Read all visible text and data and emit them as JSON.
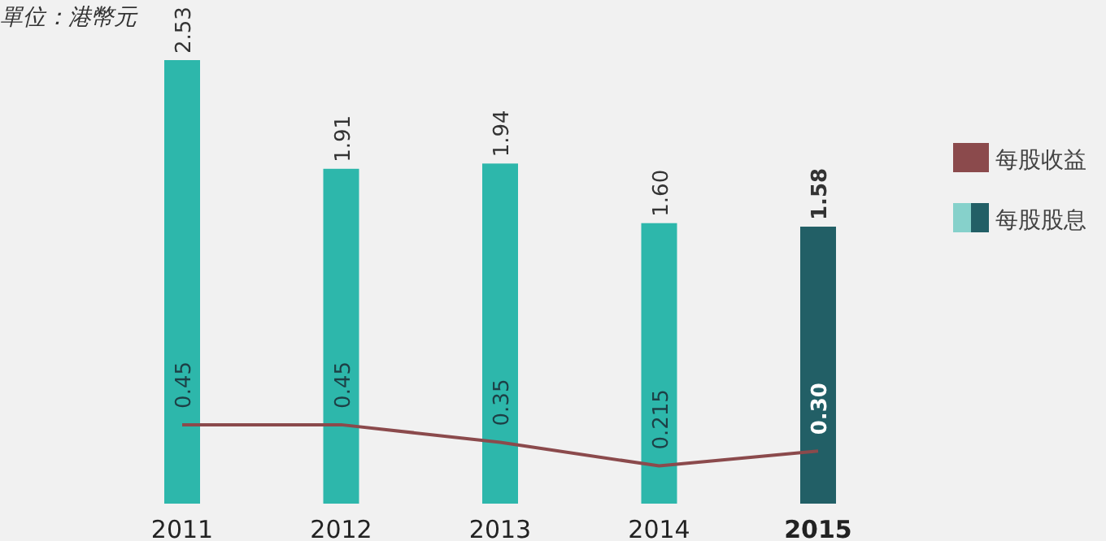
{
  "chart_data": {
    "type": "bar",
    "ylabel": "單位：港幣元",
    "categories": [
      "2011",
      "2012",
      "2013",
      "2014",
      "2015"
    ],
    "legend": "right",
    "series": [
      {
        "name": "每股收益",
        "type": "line",
        "color": "#8b4a4c",
        "values": [
          0.45,
          0.45,
          0.35,
          0.215,
          0.3
        ],
        "value_labels": [
          "0.45",
          "0.45",
          "0.35",
          "0.215",
          "0.30"
        ]
      },
      {
        "name": "每股股息",
        "color": "#2db7ab",
        "colors": [
          "#2db7ab",
          "#2db7ab",
          "#2db7ab",
          "#2db7ab",
          "#225f66"
        ],
        "values": [
          2.53,
          1.91,
          1.94,
          1.6,
          1.58
        ],
        "value_labels": [
          "2.53",
          "1.91",
          "1.94",
          "1.60",
          "1.58"
        ]
      }
    ]
  }
}
